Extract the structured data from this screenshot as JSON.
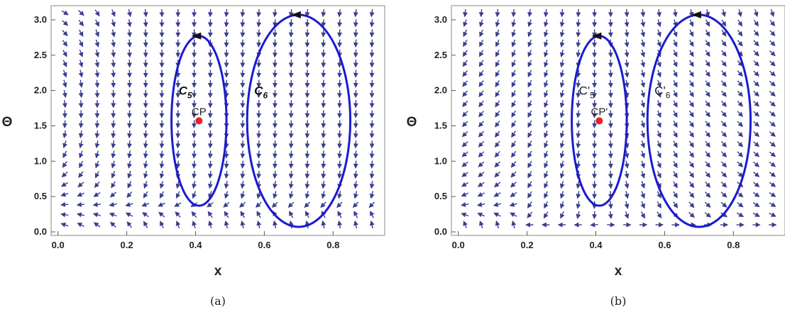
{
  "chart_data": [
    {
      "type": "vector-field",
      "caption": "(a)",
      "xlabel": "x",
      "ylabel": "Θ",
      "xlim": [
        -0.02,
        0.95
      ],
      "ylim": [
        -0.05,
        3.2
      ],
      "x_ticks": [
        "0.0",
        "0.2",
        "0.4",
        "0.6",
        "0.8"
      ],
      "y_ticks": [
        "0.0",
        "0.5",
        "1.0",
        "1.5",
        "2.0",
        "2.5",
        "3.0"
      ],
      "critical_point": {
        "label": "CP",
        "x": 0.41,
        "y": 1.5708
      },
      "contours": [
        {
          "label": "C",
          "sub": "5",
          "cx": 0.41,
          "cy": 1.5708,
          "rx": 0.08,
          "ry": 1.2
        },
        {
          "label": "C",
          "sub": "6",
          "cx": 0.7,
          "cy": 1.5708,
          "rx": 0.15,
          "ry": 1.5
        }
      ],
      "field": "a",
      "arrow_color": "#3a3f8f",
      "contour_color": "#1a1ad0",
      "cp_color": "#e8212a"
    },
    {
      "type": "vector-field",
      "caption": "(b)",
      "xlabel": "x",
      "ylabel": "Θ",
      "xlim": [
        -0.02,
        0.95
      ],
      "ylim": [
        -0.05,
        3.2
      ],
      "x_ticks": [
        "0.0",
        "0.2",
        "0.4",
        "0.6",
        "0.8"
      ],
      "y_ticks": [
        "0.0",
        "0.5",
        "1.0",
        "1.5",
        "2.0",
        "2.5",
        "3.0"
      ],
      "critical_point": {
        "label": "CP'",
        "x": 0.41,
        "y": 1.5708
      },
      "contours": [
        {
          "label": "C'",
          "sub": "5",
          "cx": 0.41,
          "cy": 1.5708,
          "rx": 0.08,
          "ry": 1.2
        },
        {
          "label": "C'",
          "sub": "6",
          "cx": 0.7,
          "cy": 1.5708,
          "rx": 0.15,
          "ry": 1.5
        }
      ],
      "field": "b",
      "arrow_color": "#3a3f8f",
      "contour_color": "#1a1ad0",
      "cp_color": "#e8212a"
    }
  ]
}
